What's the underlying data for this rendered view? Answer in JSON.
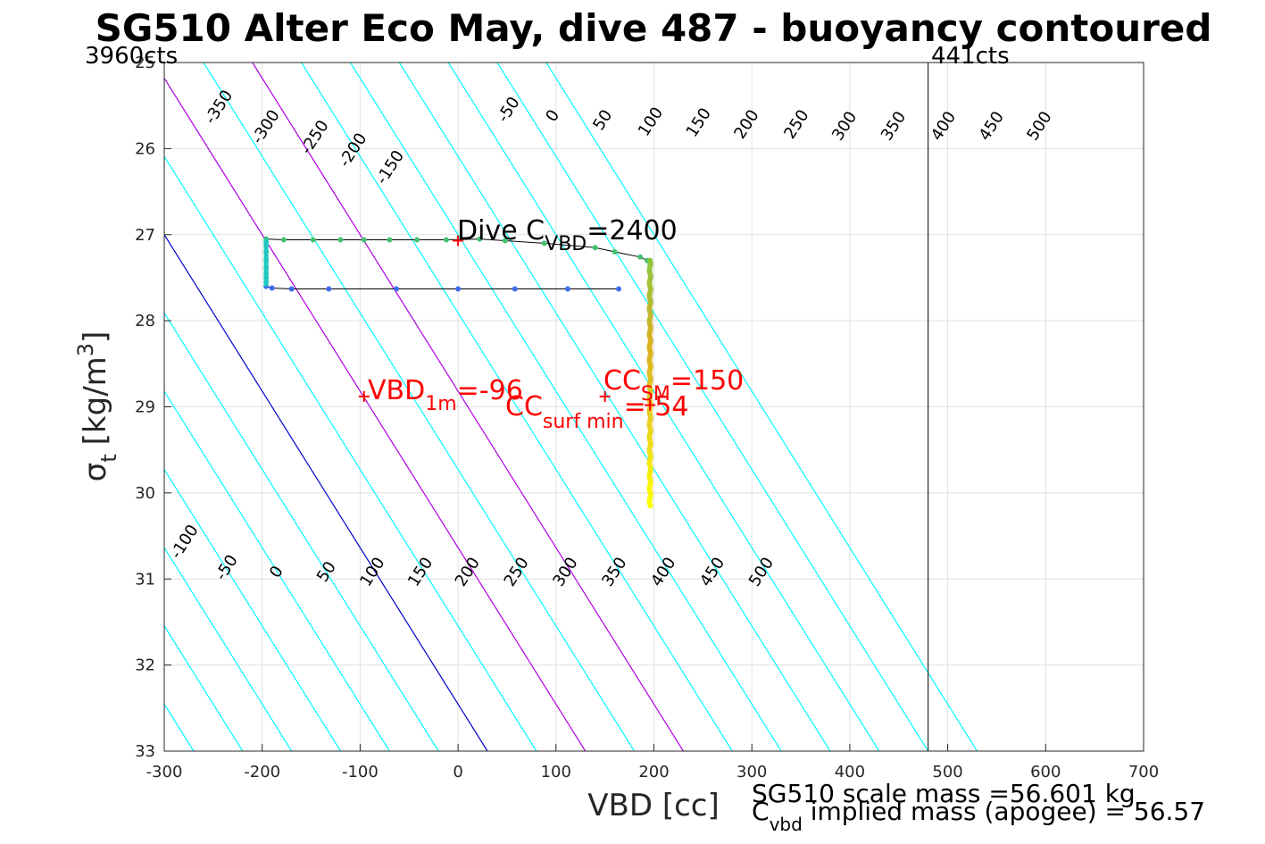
{
  "chart_data": {
    "type": "scatter",
    "title": "SG510 Alter Eco May, dive 487 - buoyancy contoured",
    "xlabel": "VBD [cc]",
    "ylabel_main": "σ",
    "ylabel_sub": "t",
    "ylabel_unit": "[kg/m",
    "ylabel_sup": "3",
    "ylabel_close": "]",
    "xlim": [
      -300,
      700
    ],
    "ylim": [
      25,
      33
    ],
    "y_reversed": true,
    "grid": true,
    "x_ticks": [
      "-300",
      "-200",
      "-100",
      "0",
      "100",
      "200",
      "300",
      "400",
      "500",
      "600",
      "700"
    ],
    "y_ticks": [
      "25",
      "26",
      "27",
      "28",
      "29",
      "30",
      "31",
      "32",
      "33"
    ],
    "contour_levels": [
      -350,
      -300,
      -250,
      -200,
      -150,
      -100,
      -50,
      0,
      50,
      100,
      150,
      200,
      250,
      300,
      350,
      400,
      450,
      500
    ],
    "contour_bottom_x": [
      -320,
      -270,
      -220,
      -170,
      -120,
      -70,
      -20,
      30,
      80,
      130,
      180,
      230,
      280,
      330,
      380,
      430,
      480,
      530
    ],
    "contour_slope_cc_per_sigma": 55.0,
    "contour_colors": {
      "default": "#00ffff",
      "zero": "#0000cc",
      "highlight": "#b000e0"
    },
    "highlight_levels": [
      100,
      200
    ],
    "top_labels": [
      {
        "text": "-350",
        "x": -240,
        "y": 25.55
      },
      {
        "text": "-300",
        "x": -192,
        "y": 25.78
      },
      {
        "text": "-250",
        "x": -142,
        "y": 25.9
      },
      {
        "text": "-200",
        "x": -103,
        "y": 26.05
      },
      {
        "text": "-150",
        "x": -65,
        "y": 26.25
      },
      {
        "text": "-50",
        "x": 56,
        "y": 25.58
      },
      {
        "text": "0",
        "x": 101,
        "y": 25.65
      },
      {
        "text": "50",
        "x": 152,
        "y": 25.7
      },
      {
        "text": "100",
        "x": 201,
        "y": 25.72
      },
      {
        "text": "150",
        "x": 250,
        "y": 25.73
      },
      {
        "text": "200",
        "x": 299,
        "y": 25.75
      },
      {
        "text": "250",
        "x": 350,
        "y": 25.75
      },
      {
        "text": "300",
        "x": 399,
        "y": 25.77
      },
      {
        "text": "350",
        "x": 449,
        "y": 25.77
      },
      {
        "text": "400",
        "x": 500,
        "y": 25.77
      },
      {
        "text": "450",
        "x": 549,
        "y": 25.77
      },
      {
        "text": "500",
        "x": 598,
        "y": 25.77
      }
    ],
    "bottom_labels": [
      {
        "text": "-100",
        "x": -275,
        "y": 30.6
      },
      {
        "text": "-50",
        "x": -232,
        "y": 30.9
      },
      {
        "text": "0",
        "x": -181,
        "y": 30.95
      },
      {
        "text": "50",
        "x": -130,
        "y": 30.95
      },
      {
        "text": "100",
        "x": -83,
        "y": 30.95
      },
      {
        "text": "150",
        "x": -34,
        "y": 30.95
      },
      {
        "text": "200",
        "x": 14,
        "y": 30.95
      },
      {
        "text": "250",
        "x": 64,
        "y": 30.95
      },
      {
        "text": "300",
        "x": 114,
        "y": 30.95
      },
      {
        "text": "350",
        "x": 164,
        "y": 30.95
      },
      {
        "text": "400",
        "x": 214,
        "y": 30.95
      },
      {
        "text": "450",
        "x": 264,
        "y": 30.95
      },
      {
        "text": "500",
        "x": 314,
        "y": 30.95
      }
    ],
    "series": [
      {
        "color": "#45c070",
        "points": [
          [
            -196,
            27.05
          ],
          [
            -178,
            27.06
          ],
          [
            -148,
            27.06
          ],
          [
            -120,
            27.06
          ],
          [
            -96,
            27.06
          ],
          [
            -70,
            27.06
          ],
          [
            -42,
            27.06
          ],
          [
            -12,
            27.06
          ],
          [
            22,
            27.05
          ],
          [
            48,
            27.07
          ],
          [
            88,
            27.1
          ],
          [
            140,
            27.15
          ],
          [
            160,
            27.2
          ],
          [
            186,
            27.26
          ],
          [
            193,
            27.3
          ],
          [
            196,
            27.34
          ]
        ]
      },
      {
        "color": "#3f6cf0",
        "points": [
          [
            -196,
            27.6
          ],
          [
            -190,
            27.62
          ],
          [
            -170,
            27.63
          ],
          [
            -132,
            27.63
          ],
          [
            -63,
            27.63
          ],
          [
            0,
            27.63
          ],
          [
            58,
            27.63
          ],
          [
            112,
            27.63
          ],
          [
            164,
            27.63
          ]
        ]
      },
      {
        "color": "#20c8c0",
        "points": [
          [
            -196,
            27.08
          ],
          [
            -196,
            27.12
          ],
          [
            -196,
            27.2
          ],
          [
            -196,
            27.3
          ],
          [
            -196,
            27.38
          ],
          [
            -196,
            27.45
          ],
          [
            -196,
            27.5
          ],
          [
            -196,
            27.55
          ]
        ]
      }
    ],
    "descent_color_scale": [
      "#8cc63f",
      "#d8b020",
      "#e8d020",
      "#ffff00"
    ],
    "descent_x": 196,
    "descent_y": [
      27.3,
      30.15
    ],
    "annotations": {
      "dive_cvbd": {
        "main": "Dive C",
        "sub": "VBD",
        "tail": "=2400",
        "x": 0,
        "y": 27.07
      },
      "vbd_1m": {
        "main": "VBD",
        "sub": "1m",
        "tail": "=-96",
        "x": -96,
        "y": 28.88
      },
      "cc_sm": {
        "main": "CC",
        "sub": "SM",
        "tail": "=150",
        "x": 150,
        "y": 28.88
      },
      "cc_surf_min": {
        "main": "CC",
        "sub": "surf min",
        "tail": "= 54",
        "x": 196,
        "y": 28.98
      }
    },
    "count_labels": {
      "left": "3960cts",
      "right": "441cts"
    },
    "vertical_line_x": 480,
    "mass_line1": "SG510 scale mass =56.601 kg",
    "mass_line2_pre": "C",
    "mass_line2_sub": "vbd",
    "mass_line2_tail": " implied mass (apogee) = 56.57"
  }
}
